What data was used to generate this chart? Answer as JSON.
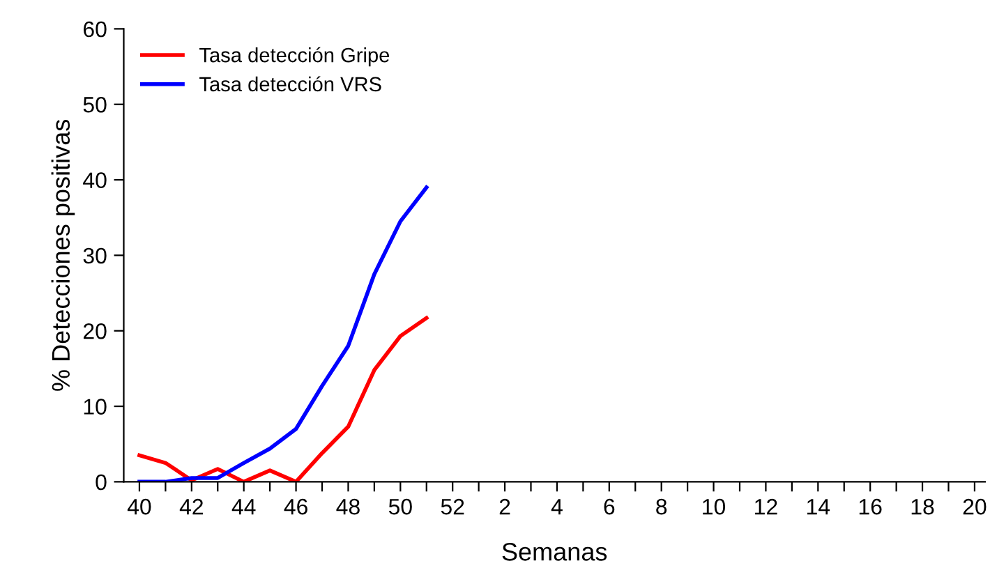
{
  "chart_data": {
    "type": "line",
    "xlabel": "Semanas",
    "ylabel": "% Detecciones positivas",
    "categories": [
      "40",
      null,
      "42",
      null,
      "44",
      null,
      "46",
      null,
      "48",
      null,
      "50",
      null,
      "52",
      null,
      "2",
      null,
      "4",
      null,
      "6",
      null,
      "8",
      null,
      "10",
      null,
      "12",
      null,
      "14",
      null,
      "16",
      null,
      "18",
      null,
      "20"
    ],
    "series": [
      {
        "name": "Tasa detección Gripe",
        "color": "#ff0000",
        "values": [
          3.5,
          2.5,
          0.2,
          1.7,
          0,
          1.5,
          0,
          3.8,
          7.3,
          14.8,
          19.3,
          21.7,
          null,
          null,
          null,
          null,
          null,
          null,
          null,
          null,
          null,
          null,
          null,
          null,
          null,
          null,
          null,
          null,
          null,
          null,
          null,
          null,
          null
        ]
      },
      {
        "name": "Tasa detección VRS",
        "color": "#0000ff",
        "values": [
          0,
          0,
          0.5,
          0.5,
          2.5,
          4.4,
          7,
          12.7,
          18,
          27.5,
          34.5,
          39,
          null,
          null,
          null,
          null,
          null,
          null,
          null,
          null,
          null,
          null,
          null,
          null,
          null,
          null,
          null,
          null,
          null,
          null,
          null,
          null,
          null
        ]
      }
    ],
    "ylim": [
      0,
      60
    ],
    "yticks": [
      0,
      10,
      20,
      30,
      40,
      50,
      60
    ],
    "grid": false,
    "legend": "top left",
    "marker": "none",
    "line_style": "solid"
  }
}
